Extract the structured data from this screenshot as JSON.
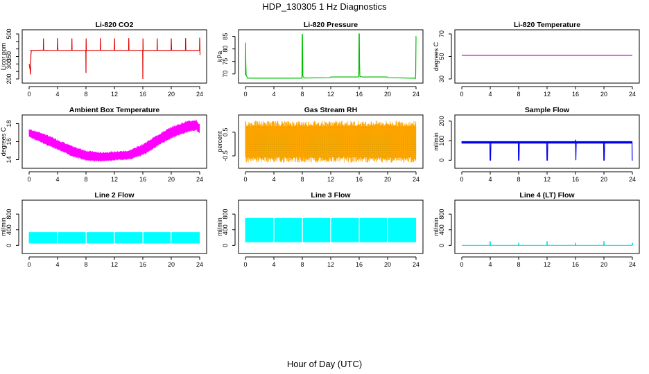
{
  "figure": {
    "title": "HDP_130305  1 Hz Diagnostics",
    "xlabel": "Hour of Day (UTC)"
  },
  "chart_data": [
    {
      "type": "line",
      "title": "Li-820 CO2",
      "ylabel": "Licor ppm",
      "color": "#e00000",
      "xlim": [
        0,
        24
      ],
      "ylim": [
        200,
        500
      ],
      "xticks": [
        0,
        4,
        8,
        12,
        16,
        20,
        24
      ],
      "yticks": [
        200,
        250,
        300,
        350,
        400,
        450,
        500
      ],
      "ytick_labels": [
        "200",
        "",
        "300",
        "350",
        "",
        "",
        "500"
      ],
      "band": [
        [
          0,
          390,
          392
        ],
        [
          24,
          388,
          390
        ]
      ],
      "series": [
        {
          "x": [
            0.0,
            0.15,
            0.2,
            0.25,
            0.3,
            0.4,
            2.0,
            2.02,
            2.05,
            3.98,
            4.0,
            4.05,
            6.0,
            6.02,
            6.05,
            7.98,
            8.0,
            8.02,
            8.05,
            10.0,
            10.02,
            10.05,
            12.0,
            12.02,
            12.05,
            14.0,
            14.02,
            14.05,
            15.98,
            16.0,
            16.02,
            16.05,
            18.0,
            18.02,
            18.05,
            19.98,
            20.0,
            20.05,
            22.0,
            22.02,
            22.05,
            23.98,
            24.0,
            24.05
          ],
          "y": [
            300,
            260,
            230,
            360,
            390,
            390,
            392,
            470,
            390,
            390,
            472,
            390,
            390,
            470,
            390,
            390,
            240,
            470,
            390,
            390,
            472,
            390,
            390,
            470,
            390,
            390,
            472,
            390,
            390,
            200,
            470,
            390,
            390,
            470,
            390,
            390,
            470,
            390,
            390,
            472,
            390,
            390,
            475,
            360
          ]
        }
      ]
    },
    {
      "type": "line",
      "title": "Li-820 Pressure",
      "ylabel": "kPa",
      "color": "#00c000",
      "xlim": [
        0,
        24
      ],
      "ylim": [
        68,
        86
      ],
      "xticks": [
        0,
        4,
        8,
        12,
        16,
        20,
        24
      ],
      "yticks": [
        70,
        75,
        80,
        85
      ],
      "ytick_labels": [
        "70",
        "75",
        "80",
        "85"
      ],
      "series": [
        {
          "x": [
            0.0,
            0.02,
            0.05,
            0.1,
            0.3,
            2.0,
            7.95,
            7.98,
            8.02,
            8.08,
            8.3,
            11.9,
            12.0,
            15.9,
            15.95,
            15.98,
            16.02,
            16.05,
            16.1,
            16.4,
            19.9,
            20.0,
            20.2,
            23.8,
            23.9,
            23.95,
            24.0,
            24.02
          ],
          "y": [
            69.5,
            82.5,
            75.0,
            69.5,
            68.3,
            68.3,
            68.3,
            85.5,
            86.0,
            69.0,
            68.4,
            68.5,
            68.8,
            68.8,
            70.0,
            86.0,
            86.0,
            75.0,
            69.0,
            68.8,
            68.8,
            68.6,
            68.5,
            68.3,
            68.1,
            70.0,
            85.0,
            85.0
          ]
        }
      ]
    },
    {
      "type": "line",
      "title": "Li-820 Temperature",
      "ylabel": "degrees C",
      "color": "#cc00cc",
      "xlim": [
        0,
        24
      ],
      "ylim": [
        30,
        70
      ],
      "xticks": [
        0,
        4,
        8,
        12,
        16,
        20,
        24
      ],
      "yticks": [
        30,
        50,
        70
      ],
      "ytick_labels": [
        "30",
        "50",
        "70"
      ],
      "series": [
        {
          "x": [
            0,
            24
          ],
          "y": [
            51,
            51
          ]
        }
      ]
    },
    {
      "type": "area",
      "title": "Ambient Box Temperature",
      "ylabel": "degrees C",
      "color": "#ff00ff",
      "xlim": [
        0,
        24
      ],
      "ylim": [
        13.5,
        18.5
      ],
      "xticks": [
        0,
        4,
        8,
        12,
        16,
        20,
        24
      ],
      "yticks": [
        14,
        16,
        18
      ],
      "ytick_labels": [
        "14",
        "16",
        "18"
      ],
      "band": [
        [
          0,
          16.6,
          17.3
        ],
        [
          2,
          15.9,
          16.8
        ],
        [
          4,
          15.2,
          16.1
        ],
        [
          6,
          14.5,
          15.4
        ],
        [
          8,
          14.0,
          14.9
        ],
        [
          10,
          13.9,
          14.7
        ],
        [
          12,
          14.0,
          14.8
        ],
        [
          14,
          14.1,
          14.9
        ],
        [
          16,
          14.6,
          15.6
        ],
        [
          18,
          15.6,
          16.6
        ],
        [
          20,
          16.5,
          17.5
        ],
        [
          22,
          17.1,
          18.1
        ],
        [
          23.5,
          17.4,
          18.3
        ],
        [
          24,
          17.0,
          17.8
        ]
      ]
    },
    {
      "type": "area",
      "title": "Gas Stream RH",
      "ylabel": "percent",
      "color": "#ffa500",
      "color2": "#999900",
      "xlim": [
        0,
        24
      ],
      "ylim": [
        -0.85,
        1.05
      ],
      "xticks": [
        0,
        4,
        8,
        12,
        16,
        20,
        24
      ],
      "yticks": [
        -0.5,
        0.5
      ],
      "ytick_labels": [
        "-0.5",
        "0.5"
      ],
      "band": [
        [
          0,
          -0.55,
          0.75
        ],
        [
          24,
          -0.55,
          0.75
        ]
      ]
    },
    {
      "type": "line",
      "title": "Sample Flow",
      "ylabel": "ml/min",
      "color": "#0000ee",
      "xlim": [
        0,
        24
      ],
      "ylim": [
        -20,
        210
      ],
      "xticks": [
        0,
        4,
        8,
        12,
        16,
        20,
        24
      ],
      "yticks": [
        0,
        100,
        200
      ],
      "ytick_labels": [
        "0",
        "100",
        "200"
      ],
      "band": [
        [
          0,
          85,
          97
        ],
        [
          24,
          85,
          97
        ]
      ],
      "series": [
        {
          "x": [
            0.0,
            3.95,
            3.98,
            4.05,
            4.1,
            7.95,
            7.98,
            8.05,
            8.1,
            11.95,
            11.98,
            12.05,
            12.1,
            15.95,
            16.0,
            16.05,
            16.1,
            19.95,
            19.98,
            20.05,
            20.1,
            23.95,
            23.98,
            24.05
          ],
          "y": [
            90,
            90,
            0,
            0,
            90,
            90,
            0,
            0,
            90,
            90,
            0,
            0,
            90,
            90,
            105,
            0,
            90,
            90,
            0,
            0,
            90,
            90,
            0,
            0
          ]
        }
      ]
    },
    {
      "type": "area",
      "title": "Line 2 Flow",
      "ylabel": "ml/min",
      "color": "#00ffff",
      "xlim": [
        0,
        24
      ],
      "ylim": [
        -100,
        1050
      ],
      "xticks": [
        0,
        4,
        8,
        12,
        16,
        20,
        24
      ],
      "yticks": [
        0,
        400,
        800
      ],
      "ytick_labels": [
        "0",
        "400",
        "800"
      ],
      "band": [
        [
          0,
          50,
          340
        ],
        [
          24,
          50,
          340
        ]
      ],
      "gaps": [
        4,
        8,
        12,
        16,
        20
      ]
    },
    {
      "type": "area",
      "title": "Line 3 Flow",
      "ylabel": "ml/min",
      "color": "#00ffff",
      "xlim": [
        0,
        24
      ],
      "ylim": [
        -100,
        1050
      ],
      "xticks": [
        0,
        4,
        8,
        12,
        16,
        20,
        24
      ],
      "yticks": [
        0,
        400,
        800
      ],
      "ytick_labels": [
        "0",
        "400",
        "800"
      ],
      "band": [
        [
          0,
          80,
          700
        ],
        [
          24,
          80,
          700
        ]
      ],
      "gaps": [
        4,
        8,
        12,
        16,
        20
      ]
    },
    {
      "type": "line",
      "title": "Line 4 (LT) Flow",
      "ylabel": "ml/min",
      "color": "#00e5e5",
      "xlim": [
        0,
        24
      ],
      "ylim": [
        -100,
        1050
      ],
      "xticks": [
        0,
        4,
        8,
        12,
        16,
        20,
        24
      ],
      "yticks": [
        0,
        400,
        800
      ],
      "ytick_labels": [
        "0",
        "400",
        "800"
      ],
      "series": [
        {
          "x": [
            0,
            3.95,
            4.0,
            4.05,
            7.95,
            8.0,
            8.05,
            11.95,
            12.0,
            12.05,
            15.95,
            16.0,
            16.05,
            19.95,
            20.0,
            20.05,
            23.95,
            24.0,
            24.05
          ],
          "y": [
            0,
            0,
            110,
            0,
            0,
            70,
            0,
            0,
            110,
            0,
            0,
            70,
            0,
            0,
            110,
            0,
            0,
            70,
            0
          ]
        }
      ]
    }
  ]
}
